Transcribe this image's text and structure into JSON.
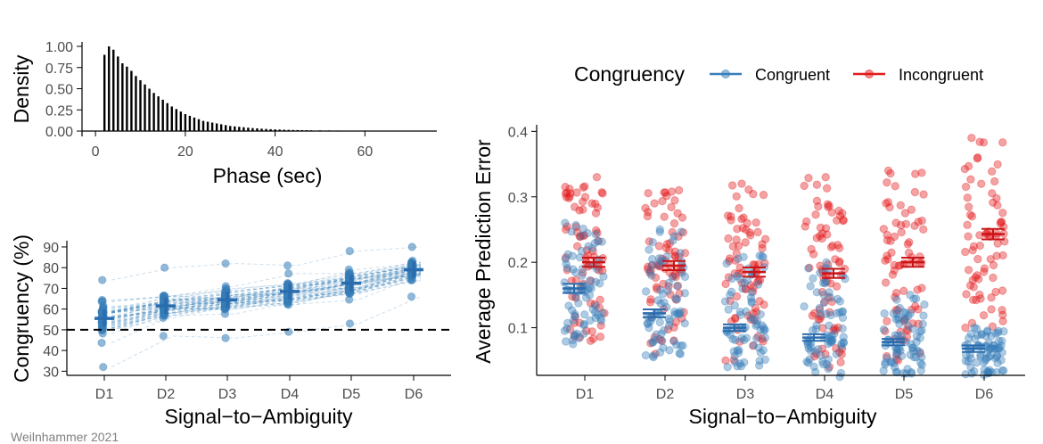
{
  "caption": "Weilnhammer 2021",
  "colors": {
    "congruent": "#377EB8",
    "incongruent": "#E41A1C",
    "axis": "#000000",
    "tick_text": "#4D4D4D"
  },
  "chart_data": [
    {
      "id": "phase-density",
      "type": "bar",
      "xlabel": "Phase (sec)",
      "ylabel": "Density",
      "xlim": [
        -3,
        76
      ],
      "ylim": [
        0,
        1.0
      ],
      "x_ticks": [
        0,
        20,
        40,
        60
      ],
      "y_ticks": [
        0.0,
        0.25,
        0.5,
        0.75,
        1.0
      ],
      "x_tick_labels": [
        "0",
        "20",
        "40",
        "60"
      ],
      "y_tick_labels": [
        "0.00",
        "0.25",
        "0.50",
        "0.75",
        "1.00"
      ],
      "x": [
        2,
        3,
        4,
        5,
        6,
        7,
        8,
        9,
        10,
        11,
        12,
        13,
        14,
        15,
        16,
        17,
        18,
        19,
        20,
        21,
        22,
        23,
        24,
        25,
        26,
        27,
        28,
        29,
        30,
        31,
        32,
        33,
        34,
        35,
        36,
        37,
        38,
        39,
        40,
        41,
        42,
        43,
        44,
        45,
        46,
        47,
        48,
        50,
        52,
        54,
        56,
        58,
        60,
        62,
        64,
        66
      ],
      "values": [
        0.9,
        1.0,
        0.96,
        0.88,
        0.8,
        0.76,
        0.71,
        0.65,
        0.6,
        0.55,
        0.5,
        0.45,
        0.41,
        0.37,
        0.33,
        0.29,
        0.26,
        0.23,
        0.2,
        0.18,
        0.16,
        0.14,
        0.12,
        0.11,
        0.1,
        0.09,
        0.08,
        0.07,
        0.06,
        0.055,
        0.05,
        0.045,
        0.04,
        0.035,
        0.032,
        0.028,
        0.025,
        0.022,
        0.02,
        0.018,
        0.016,
        0.014,
        0.013,
        0.012,
        0.011,
        0.01,
        0.009,
        0.008,
        0.007,
        0.006,
        0.005,
        0.004,
        0.004,
        0.003,
        0.003,
        0.002
      ]
    },
    {
      "id": "congruency",
      "type": "scatter",
      "xlabel": "Signal−to−Ambiguity",
      "ylabel": "Congruency (%)",
      "categories": [
        "D1",
        "D2",
        "D3",
        "D4",
        "D5",
        "D6"
      ],
      "ylim": [
        28,
        93
      ],
      "y_ticks": [
        30,
        40,
        50,
        60,
        70,
        80,
        90
      ],
      "y_tick_labels": [
        "30",
        "40",
        "50",
        "60",
        "70",
        "80",
        "90"
      ],
      "reference_line": 50,
      "means": [
        55.5,
        61.5,
        64.5,
        68.5,
        72.5,
        79
      ],
      "sems": [
        1.2,
        1.0,
        1.0,
        1.0,
        1.0,
        0.8
      ],
      "point_spread": [
        {
          "min": 32,
          "max": 74
        },
        {
          "min": 47,
          "max": 80
        },
        {
          "min": 46,
          "max": 82
        },
        {
          "min": 49,
          "max": 81
        },
        {
          "min": 53,
          "max": 88
        },
        {
          "min": 66,
          "max": 90
        }
      ]
    },
    {
      "id": "prediction-error",
      "type": "scatter",
      "xlabel": "Signal−to−Ambiguity",
      "ylabel": "Average Prediction Error",
      "categories": [
        "D1",
        "D2",
        "D3",
        "D4",
        "D5",
        "D6"
      ],
      "ylim": [
        0.0,
        0.41
      ],
      "y_ticks": [
        0.1,
        0.2,
        0.3,
        0.4
      ],
      "y_tick_labels": [
        "0.1",
        "0.2",
        "0.3",
        "0.4"
      ],
      "legend": {
        "title": "Congruency",
        "position": "top",
        "entries": [
          "Congruent",
          "Incongruent"
        ]
      },
      "series": [
        {
          "name": "Congruent",
          "means": [
            0.16,
            0.122,
            0.1,
            0.085,
            0.078,
            0.068
          ],
          "sems": [
            0.007,
            0.006,
            0.005,
            0.005,
            0.005,
            0.005
          ],
          "point_spread": [
            {
              "min": 0.075,
              "max": 0.26
            },
            {
              "min": 0.055,
              "max": 0.25
            },
            {
              "min": 0.04,
              "max": 0.21
            },
            {
              "min": 0.025,
              "max": 0.2
            },
            {
              "min": 0.03,
              "max": 0.15
            },
            {
              "min": 0.028,
              "max": 0.1
            }
          ]
        },
        {
          "name": "Incongruent",
          "means": [
            0.2,
            0.195,
            0.185,
            0.183,
            0.2,
            0.243
          ],
          "sems": [
            0.007,
            0.007,
            0.007,
            0.007,
            0.007,
            0.008
          ],
          "point_spread": [
            {
              "min": 0.08,
              "max": 0.33
            },
            {
              "min": 0.06,
              "max": 0.31
            },
            {
              "min": 0.05,
              "max": 0.32
            },
            {
              "min": 0.04,
              "max": 0.33
            },
            {
              "min": 0.05,
              "max": 0.34
            },
            {
              "min": 0.1,
              "max": 0.39
            }
          ]
        }
      ]
    }
  ]
}
